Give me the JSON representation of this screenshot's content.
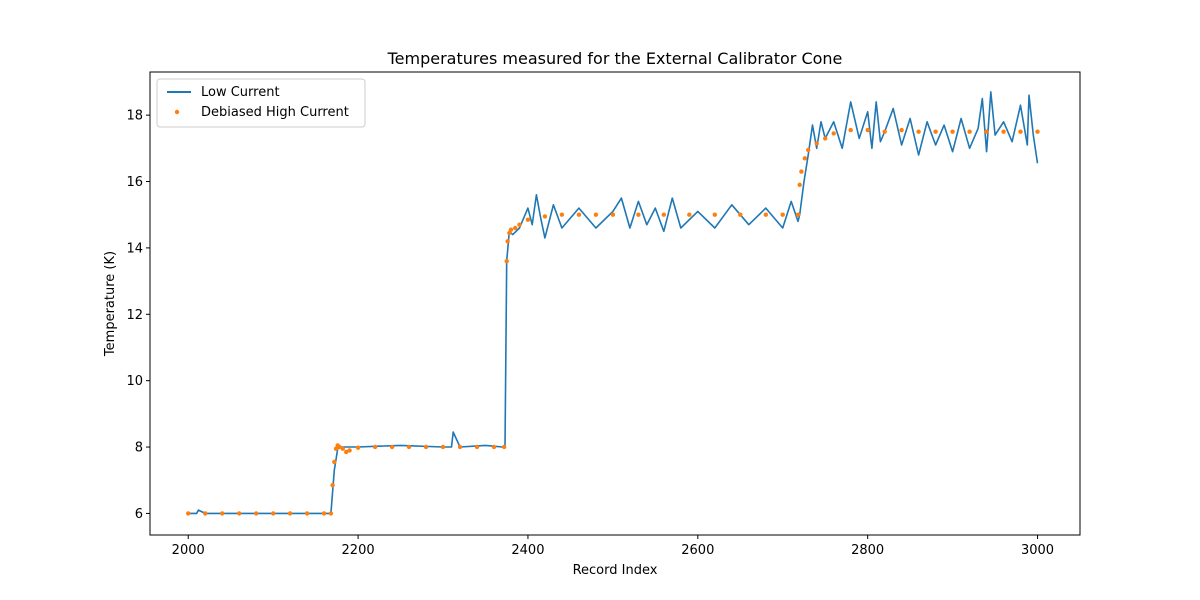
{
  "chart_data": {
    "type": "line",
    "title": "Temperatures measured for the External Calibrator Cone",
    "xlabel": "Record Index",
    "ylabel": "Temperature (K)",
    "xlim": [
      1955,
      3050
    ],
    "ylim": [
      5.35,
      19.3
    ],
    "xticks": [
      2000,
      2200,
      2400,
      2600,
      2800,
      3000
    ],
    "yticks": [
      6,
      8,
      10,
      12,
      14,
      16,
      18
    ],
    "grid": false,
    "legend_position": "top-left",
    "series": [
      {
        "name": "Low Current",
        "style": "line",
        "color": "#1f77b4",
        "x": [
          2000,
          2010,
          2012,
          2020,
          2050,
          2100,
          2150,
          2168,
          2172,
          2176,
          2180,
          2200,
          2250,
          2300,
          2310,
          2312,
          2320,
          2350,
          2370,
          2373,
          2375,
          2378,
          2382,
          2390,
          2400,
          2405,
          2410,
          2415,
          2420,
          2430,
          2440,
          2460,
          2480,
          2500,
          2510,
          2520,
          2530,
          2540,
          2550,
          2560,
          2570,
          2580,
          2600,
          2620,
          2640,
          2660,
          2680,
          2700,
          2710,
          2718,
          2720,
          2725,
          2730,
          2735,
          2740,
          2745,
          2750,
          2760,
          2770,
          2780,
          2790,
          2800,
          2805,
          2810,
          2815,
          2820,
          2830,
          2840,
          2850,
          2860,
          2870,
          2880,
          2890,
          2900,
          2910,
          2920,
          2930,
          2935,
          2940,
          2945,
          2950,
          2960,
          2970,
          2980,
          2988,
          2990,
          2995,
          3000
        ],
        "y": [
          6.0,
          6.0,
          6.1,
          6.0,
          6.0,
          6.0,
          6.0,
          6.0,
          7.3,
          7.95,
          8.0,
          8.0,
          8.05,
          8.0,
          8.0,
          8.45,
          8.0,
          8.05,
          8.0,
          8.0,
          13.6,
          14.5,
          14.4,
          14.6,
          15.2,
          14.7,
          15.6,
          14.9,
          14.3,
          15.3,
          14.6,
          15.2,
          14.6,
          15.1,
          15.5,
          14.6,
          15.4,
          14.7,
          15.2,
          14.5,
          15.5,
          14.6,
          15.1,
          14.6,
          15.3,
          14.7,
          15.2,
          14.6,
          15.4,
          14.8,
          15.0,
          16.0,
          16.8,
          17.7,
          17.0,
          17.8,
          17.3,
          17.8,
          17.0,
          18.4,
          17.3,
          18.1,
          17.0,
          18.4,
          17.2,
          17.5,
          18.2,
          17.1,
          17.9,
          16.8,
          17.8,
          17.1,
          17.7,
          16.9,
          17.9,
          17.0,
          17.6,
          18.5,
          16.9,
          18.7,
          17.4,
          17.8,
          17.2,
          18.3,
          17.1,
          18.6,
          17.4,
          16.55
        ]
      },
      {
        "name": "Debiased High Current",
        "style": "scatter",
        "color": "#ff7f0e",
        "x": [
          2000,
          2020,
          2040,
          2060,
          2080,
          2100,
          2120,
          2140,
          2160,
          2168,
          2170,
          2172,
          2174,
          2176,
          2178,
          2182,
          2186,
          2190,
          2200,
          2220,
          2240,
          2260,
          2280,
          2300,
          2320,
          2340,
          2360,
          2372,
          2375,
          2376,
          2378,
          2380,
          2385,
          2390,
          2400,
          2420,
          2440,
          2460,
          2480,
          2500,
          2530,
          2560,
          2590,
          2620,
          2650,
          2680,
          2700,
          2718,
          2720,
          2722,
          2726,
          2730,
          2740,
          2750,
          2760,
          2780,
          2800,
          2820,
          2840,
          2860,
          2880,
          2900,
          2920,
          2940,
          2960,
          2980,
          3000
        ],
        "y": [
          6.0,
          6.0,
          6.0,
          6.0,
          6.0,
          6.0,
          6.0,
          6.0,
          6.0,
          6.0,
          6.85,
          7.55,
          7.95,
          8.05,
          8.0,
          7.95,
          7.85,
          7.9,
          7.98,
          8.0,
          8.0,
          8.0,
          8.0,
          8.0,
          8.0,
          8.0,
          8.0,
          8.0,
          13.6,
          14.2,
          14.45,
          14.55,
          14.6,
          14.7,
          14.85,
          14.95,
          15.0,
          15.0,
          15.0,
          15.0,
          15.0,
          15.0,
          15.0,
          15.0,
          15.0,
          15.0,
          15.0,
          15.0,
          15.9,
          16.3,
          16.7,
          16.95,
          17.15,
          17.3,
          17.45,
          17.55,
          17.55,
          17.5,
          17.55,
          17.5,
          17.5,
          17.5,
          17.5,
          17.5,
          17.5,
          17.5,
          17.5
        ]
      }
    ]
  }
}
